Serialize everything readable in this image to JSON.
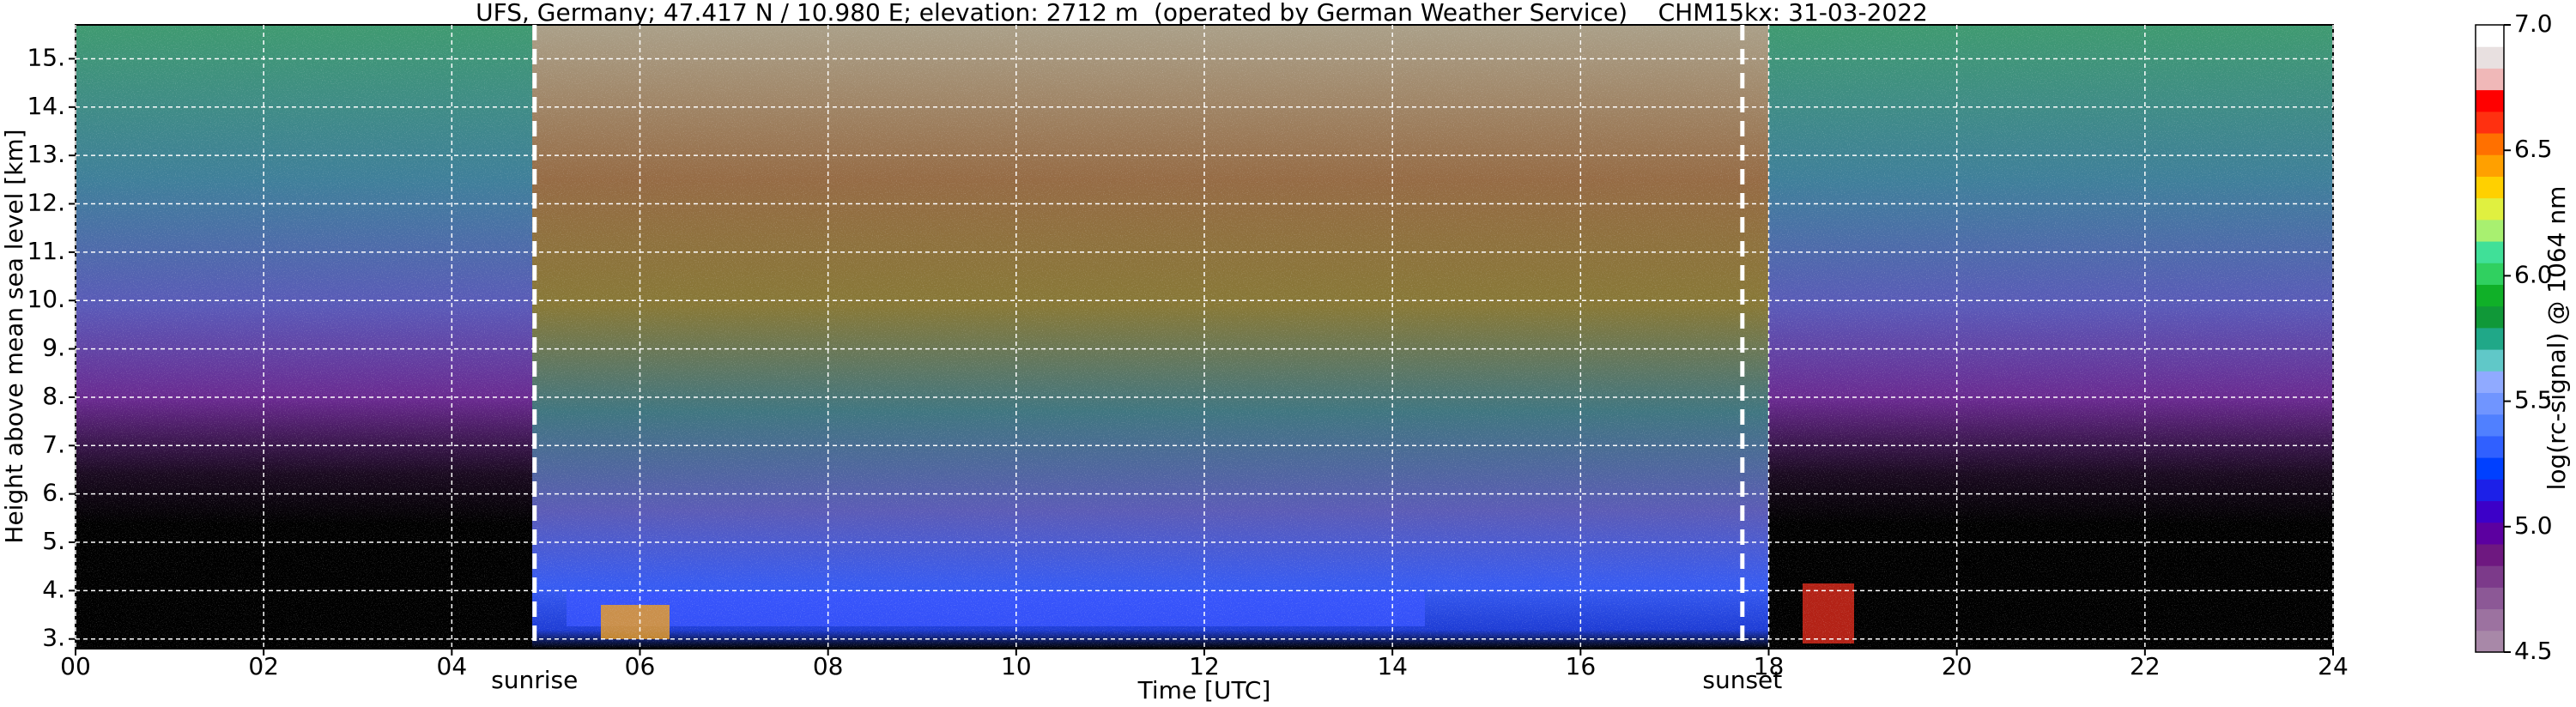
{
  "chart_data": {
    "type": "heatmap",
    "title": "UFS, Germany; 47.417 N / 10.980 E; elevation: 2712 m  (operated by German Weather Service)    CHM15kx: 31-03-2022",
    "x_label": "Time [UTC]",
    "y_label": "Height above mean sea level [km]",
    "xlim": [
      0,
      24
    ],
    "xticks": [
      {
        "value": 0,
        "label": "00"
      },
      {
        "value": 2,
        "label": "02"
      },
      {
        "value": 4,
        "label": "04"
      },
      {
        "value": 6,
        "label": "06"
      },
      {
        "value": 8,
        "label": "08"
      },
      {
        "value": 10,
        "label": "10"
      },
      {
        "value": 12,
        "label": "12"
      },
      {
        "value": 14,
        "label": "14"
      },
      {
        "value": 16,
        "label": "16"
      },
      {
        "value": 18,
        "label": "18"
      },
      {
        "value": 20,
        "label": "20"
      },
      {
        "value": 22,
        "label": "22"
      },
      {
        "value": 24,
        "label": "24"
      }
    ],
    "ylim": [
      2.8,
      15.7
    ],
    "yticks": [
      {
        "value": 3,
        "label": "3."
      },
      {
        "value": 4,
        "label": "4."
      },
      {
        "value": 5,
        "label": "5."
      },
      {
        "value": 6,
        "label": "6."
      },
      {
        "value": 7,
        "label": "7."
      },
      {
        "value": 8,
        "label": "8."
      },
      {
        "value": 9,
        "label": "9."
      },
      {
        "value": 10,
        "label": "10."
      },
      {
        "value": 11,
        "label": "11."
      },
      {
        "value": 12,
        "label": "12."
      },
      {
        "value": 13,
        "label": "13."
      },
      {
        "value": 14,
        "label": "14."
      },
      {
        "value": 15,
        "label": "15."
      }
    ],
    "grid": true,
    "events": [
      {
        "name": "sunrise",
        "x": 4.88
      },
      {
        "name": "sunset",
        "x": 17.72
      }
    ],
    "colorbar": {
      "label": "log(rc-signal) @ 1064 nm",
      "lim": [
        4.5,
        7.0
      ],
      "ticks": [
        {
          "value": 4.5,
          "label": "4.5"
        },
        {
          "value": 5,
          "label": "5.0"
        },
        {
          "value": 5.5,
          "label": "5.5"
        },
        {
          "value": 6,
          "label": "6.0"
        },
        {
          "value": 6.5,
          "label": "6.5"
        },
        {
          "value": 7,
          "label": "7.0"
        }
      ],
      "colors": [
        "#a888a8",
        "#9c72a0",
        "#8c5896",
        "#7c3a8a",
        "#6e1880",
        "#5c00a0",
        "#3c00c8",
        "#1c20e8",
        "#0040ff",
        "#3060ff",
        "#5080ff",
        "#7095ff",
        "#90aaff",
        "#60c8c8",
        "#20a888",
        "#109838",
        "#10b028",
        "#30d060",
        "#40e098",
        "#a8f070",
        "#e0f040",
        "#ffd000",
        "#ffa000",
        "#ff7000",
        "#ff3010",
        "#ff0000",
        "#f0b8b8",
        "#e8e0e0",
        "#ffffff"
      ]
    }
  }
}
